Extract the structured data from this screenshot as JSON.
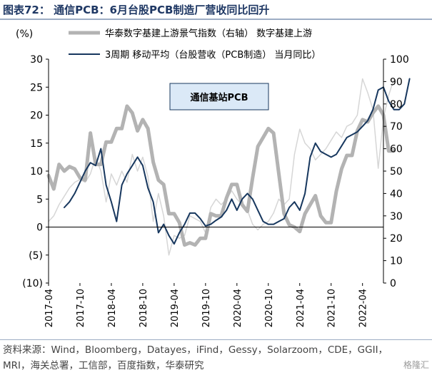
{
  "figure_title": "图表72： 通信PCB：6月台股PCB制造厂营收同比回升",
  "source_note": "资料来源：Wind，Bloomberg，Datayes，iFind，Gessy，Solarzoom，CDE，GGII，MRI，海关总署，工信部，百度指数，华泰研究",
  "watermark": "格隆汇",
  "chart_data": {
    "type": "line",
    "title": "",
    "annotation": "通信基站PCB",
    "left_axis": {
      "label": "(%)",
      "ylim": [
        -10,
        30
      ],
      "ticks": [
        -10,
        -5,
        0,
        5,
        10,
        15,
        20,
        25,
        30
      ],
      "tick_labels": [
        "(10)",
        "(5)",
        "0",
        "5",
        "10",
        "15",
        "20",
        "25",
        "30"
      ]
    },
    "right_axis": {
      "label": "",
      "ylim": [
        0,
        100
      ],
      "ticks": [
        0,
        10,
        20,
        30,
        40,
        50,
        60,
        70,
        80,
        90,
        100
      ],
      "tick_labels": [
        "0",
        "10",
        "20",
        "30",
        "40",
        "50",
        "60",
        "70",
        "80",
        "90",
        "100"
      ]
    },
    "x_axis": {
      "start": "2017-04",
      "end": "2022-08",
      "tick_labels": [
        "2017-04",
        "2017-10",
        "2018-04",
        "2018-10",
        "2019-04",
        "2019-10",
        "2020-04",
        "2020-10",
        "2021-04",
        "2021-10",
        "2022-04"
      ]
    },
    "legend": {
      "position": "top"
    },
    "series": [
      {
        "name": "华泰数字基建上游景气指数（右轴） 数字基建上游",
        "axis": "right",
        "style": "thick-gray",
        "color": "#b3b3b3",
        "start": "2017-04",
        "values": [
          48,
          42,
          53,
          50,
          52,
          51,
          47,
          46,
          67,
          53,
          53,
          63,
          63,
          69,
          69,
          79,
          76,
          68,
          73,
          69,
          54,
          46,
          44,
          31,
          31,
          27,
          17,
          18,
          17,
          20,
          20,
          31,
          30,
          30,
          38,
          44,
          44,
          35,
          32,
          47,
          61,
          65,
          69,
          67,
          49,
          31,
          26,
          25,
          23,
          31,
          35,
          39,
          30,
          27,
          27,
          41,
          51,
          57,
          57,
          68,
          73,
          72,
          76,
          79,
          75,
          59,
          59
        ]
      },
      {
        "name": "3周期 移动平均（台股营收（PCB制造） 当月同比）",
        "axis": "left",
        "style": "navy",
        "color": "#17375e",
        "start": "2017-07",
        "values": [
          3.5,
          4.5,
          6,
          8,
          10,
          11.5,
          11,
          14,
          7.5,
          4.5,
          1,
          7.5,
          9.5,
          11,
          12.5,
          11,
          7,
          4.5,
          -1,
          0.5,
          -1.5,
          -3,
          -1,
          0.5,
          2.5,
          2.5,
          1.5,
          0.2,
          0.5,
          1.2,
          1.8,
          3,
          5,
          3,
          5,
          6,
          5,
          3,
          1,
          0.5,
          0.5,
          1,
          1.5,
          3.5,
          4.5,
          3,
          6,
          12.5,
          15,
          13.5,
          13,
          12.5,
          13,
          14.5,
          16,
          16.5,
          17,
          18,
          19,
          21,
          24.5,
          25,
          22.5,
          21,
          21,
          22,
          26.5
        ]
      },
      {
        "name": "台股营收（PCB制造） 当月同比",
        "axis": "left",
        "style": "thin-light",
        "color": "#d6d6d6",
        "start": "2017-04",
        "values": [
          1,
          2,
          4,
          5.5,
          7,
          8,
          8.5,
          8,
          9.5,
          12.5,
          10,
          4.5,
          9.5,
          7.5,
          10,
          8,
          13,
          10,
          12.5,
          9,
          1,
          6,
          2,
          -5,
          -1.5,
          -2,
          -1.5,
          2,
          1.5,
          1,
          -1,
          3.5,
          5,
          4,
          5,
          6.5,
          5,
          4,
          3,
          0.5,
          -0.5,
          0.5,
          1,
          2.5,
          5,
          4,
          5,
          13,
          17.5,
          15,
          14,
          12,
          13,
          14,
          15.5,
          17,
          16,
          18,
          18.5,
          20,
          26.5,
          24,
          21,
          10.5,
          19.5,
          23.5,
          26.5
        ]
      }
    ]
  }
}
